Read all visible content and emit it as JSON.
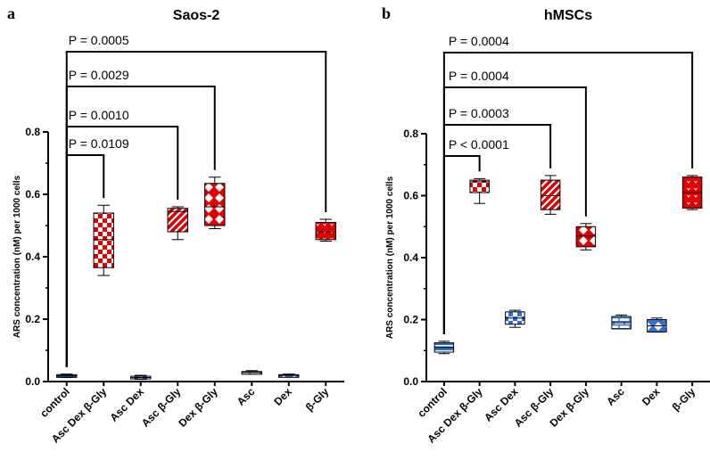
{
  "chart_data": [
    {
      "type": "box",
      "panel_label": "a",
      "title": "Saos-2",
      "ylabel": "ARS concentration (nM) per 1000 cells",
      "xlabel": "",
      "ylim": [
        0,
        0.8
      ],
      "yticks": [
        "0.0",
        "0.2",
        "0.4",
        "0.6",
        "0.8"
      ],
      "categories": [
        "control",
        "Asc Dex β-Gly",
        "Asc Dex",
        "Asc β-Gly",
        "Dex β-Gly",
        "Asc",
        "Dex",
        "β-Gly"
      ],
      "boxes": [
        {
          "min": 0.013,
          "q1": 0.016,
          "median": 0.018,
          "q3": 0.022,
          "max": 0.024,
          "color": "#2f6fd6",
          "pattern": "stripes-h"
        },
        {
          "min": 0.34,
          "q1": 0.365,
          "median": 0.455,
          "q3": 0.54,
          "max": 0.565,
          "color": "#e00000",
          "pattern": "checker"
        },
        {
          "min": 0.007,
          "q1": 0.01,
          "median": 0.013,
          "q3": 0.017,
          "max": 0.02,
          "color": "#2f6fd6",
          "pattern": "checker"
        },
        {
          "min": 0.455,
          "q1": 0.48,
          "median": 0.545,
          "q3": 0.555,
          "max": 0.56,
          "color": "#e00000",
          "pattern": "stripes-diag"
        },
        {
          "min": 0.49,
          "q1": 0.5,
          "median": 0.56,
          "q3": 0.635,
          "max": 0.655,
          "color": "#e00000",
          "pattern": "diamonds"
        },
        {
          "min": 0.024,
          "q1": 0.026,
          "median": 0.029,
          "q3": 0.032,
          "max": 0.035,
          "color": "#2f6fd6",
          "pattern": "brick"
        },
        {
          "min": 0.017,
          "q1": 0.018,
          "median": 0.02,
          "q3": 0.022,
          "max": 0.024,
          "color": "#2f6fd6",
          "pattern": "diamonds"
        },
        {
          "min": 0.45,
          "q1": 0.455,
          "median": 0.48,
          "q3": 0.51,
          "max": 0.52,
          "color": "#e00000",
          "pattern": "dots"
        }
      ],
      "comparisons": [
        {
          "from": 0,
          "to": 1,
          "label": "P = 0.0109",
          "level": 0
        },
        {
          "from": 0,
          "to": 3,
          "label": "P = 0.0010",
          "level": 1
        },
        {
          "from": 0,
          "to": 4,
          "label": "P = 0.0029",
          "level": 2
        },
        {
          "from": 0,
          "to": 7,
          "label": "P = 0.0005",
          "level": 3
        }
      ]
    },
    {
      "type": "box",
      "panel_label": "b",
      "title": "hMSCs",
      "ylabel": "ARS concentration (nM) per 1000 cells",
      "xlabel": "",
      "ylim": [
        0,
        0.8
      ],
      "yticks": [
        "0.0",
        "0.2",
        "0.4",
        "0.6",
        "0.8"
      ],
      "categories": [
        "control",
        "Asc Dex β-Gly",
        "Asc Dex",
        "Asc β-Gly",
        "Dex β-Gly",
        "Asc",
        "Dex",
        "β-Gly"
      ],
      "boxes": [
        {
          "min": 0.09,
          "q1": 0.095,
          "median": 0.11,
          "q3": 0.125,
          "max": 0.13,
          "color": "#2f6fd6",
          "pattern": "stripes-h"
        },
        {
          "min": 0.575,
          "q1": 0.61,
          "median": 0.645,
          "q3": 0.65,
          "max": 0.655,
          "color": "#e00000",
          "pattern": "checker"
        },
        {
          "min": 0.175,
          "q1": 0.185,
          "median": 0.205,
          "q3": 0.225,
          "max": 0.23,
          "color": "#2f6fd6",
          "pattern": "checker"
        },
        {
          "min": 0.54,
          "q1": 0.555,
          "median": 0.6,
          "q3": 0.65,
          "max": 0.665,
          "color": "#e00000",
          "pattern": "stripes-diag"
        },
        {
          "min": 0.425,
          "q1": 0.435,
          "median": 0.47,
          "q3": 0.5,
          "max": 0.51,
          "color": "#e00000",
          "pattern": "diamonds"
        },
        {
          "min": 0.17,
          "q1": 0.17,
          "median": 0.19,
          "q3": 0.21,
          "max": 0.215,
          "color": "#2f6fd6",
          "pattern": "brick"
        },
        {
          "min": 0.16,
          "q1": 0.16,
          "median": 0.18,
          "q3": 0.2,
          "max": 0.205,
          "color": "#2f6fd6",
          "pattern": "diamonds"
        },
        {
          "min": 0.555,
          "q1": 0.56,
          "median": 0.61,
          "q3": 0.66,
          "max": 0.665,
          "color": "#e00000",
          "pattern": "dots"
        }
      ],
      "comparisons": [
        {
          "from": 0,
          "to": 1,
          "label": "P < 0.0001",
          "level": 0
        },
        {
          "from": 0,
          "to": 3,
          "label": "P = 0.0003",
          "level": 1
        },
        {
          "from": 0,
          "to": 4,
          "label": "P = 0.0004",
          "level": 2
        },
        {
          "from": 0,
          "to": 7,
          "label": "P = 0.0004",
          "level": 3
        }
      ]
    }
  ]
}
